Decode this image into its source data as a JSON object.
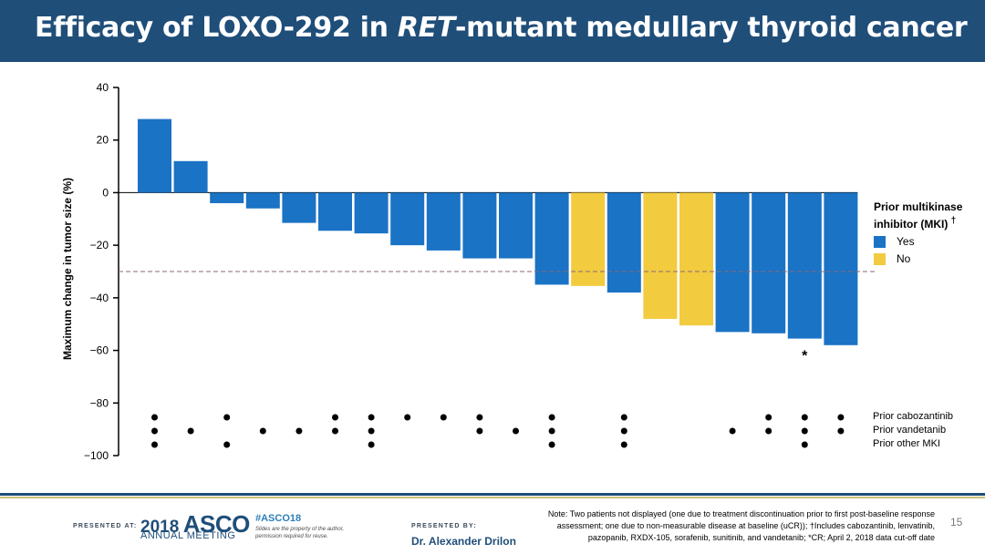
{
  "slide": {
    "title_part1": "Efficacy of LOXO-292 in ",
    "title_italic": "RET",
    "title_part2": "-mutant medullary thyroid cancer",
    "page_number": "15"
  },
  "chart_data": {
    "type": "bar",
    "subtype": "waterfall",
    "ylabel": "Maximum change in tumor size (%)",
    "ylim": [
      -100,
      40
    ],
    "yticks": [
      40,
      20,
      0,
      -20,
      -40,
      -60,
      -80,
      -100
    ],
    "ytick_labels": [
      "40",
      "20",
      "0",
      "−20",
      "−40",
      "−60",
      "−80",
      "−100"
    ],
    "reference_line": -30,
    "values": [
      28,
      12,
      -4,
      -6,
      -11.5,
      -14.5,
      -15.5,
      -20,
      -22,
      -25,
      -25,
      -35,
      -35.5,
      -38,
      -48,
      -50.5,
      -53,
      -53.5,
      -55.5,
      -58
    ],
    "prior_mki": [
      "Yes",
      "Yes",
      "Yes",
      "Yes",
      "Yes",
      "Yes",
      "Yes",
      "Yes",
      "Yes",
      "Yes",
      "Yes",
      "Yes",
      "No",
      "Yes",
      "No",
      "No",
      "Yes",
      "Yes",
      "Yes",
      "Yes"
    ],
    "asterisk_bar_index": 18,
    "asterisk_label": "*",
    "colors": {
      "Yes": "#1a73c4",
      "No": "#f2cb3f"
    },
    "legend": {
      "title": "Prior multikinase inhibitor (MKI)",
      "title_dagger": "†",
      "items": [
        {
          "label": "Yes",
          "color": "#1a73c4"
        },
        {
          "label": "No",
          "color": "#f2cb3f"
        }
      ],
      "placement": "right"
    },
    "dot_rows": [
      {
        "label": "Prior cabozantinib",
        "bars": [
          0,
          2,
          5,
          6,
          7,
          8,
          9,
          11,
          13,
          17,
          18,
          19
        ]
      },
      {
        "label": "Prior vandetanib",
        "bars": [
          0,
          1,
          3,
          4,
          5,
          6,
          9,
          10,
          11,
          13,
          16,
          17,
          18,
          19
        ]
      },
      {
        "label": "Prior other MKI",
        "bars": [
          0,
          2,
          6,
          11,
          13,
          18
        ]
      }
    ]
  },
  "footer": {
    "presented_at": "PRESENTED AT:",
    "asco_year": "2018",
    "asco_word": "ASCO",
    "asco_meeting": "ANNUAL MEETING",
    "hashtag": "#ASCO18",
    "disclaimer": "Slides are the property of the author, permission required for reuse.",
    "presented_by": "PRESENTED BY:",
    "presenter": "Dr. Alexander Drilon",
    "note": "Note: Two patients not displayed (one due to treatment discontinuation prior to first post-baseline response assessment; one due to non-measurable disease at baseline (uCR)); †Includes cabozantinib, lenvatinib, pazopanib, RXDX-105, sorafenib, sunitinib, and vandetanib; *CR; April 2, 2018 data cut-off date"
  }
}
